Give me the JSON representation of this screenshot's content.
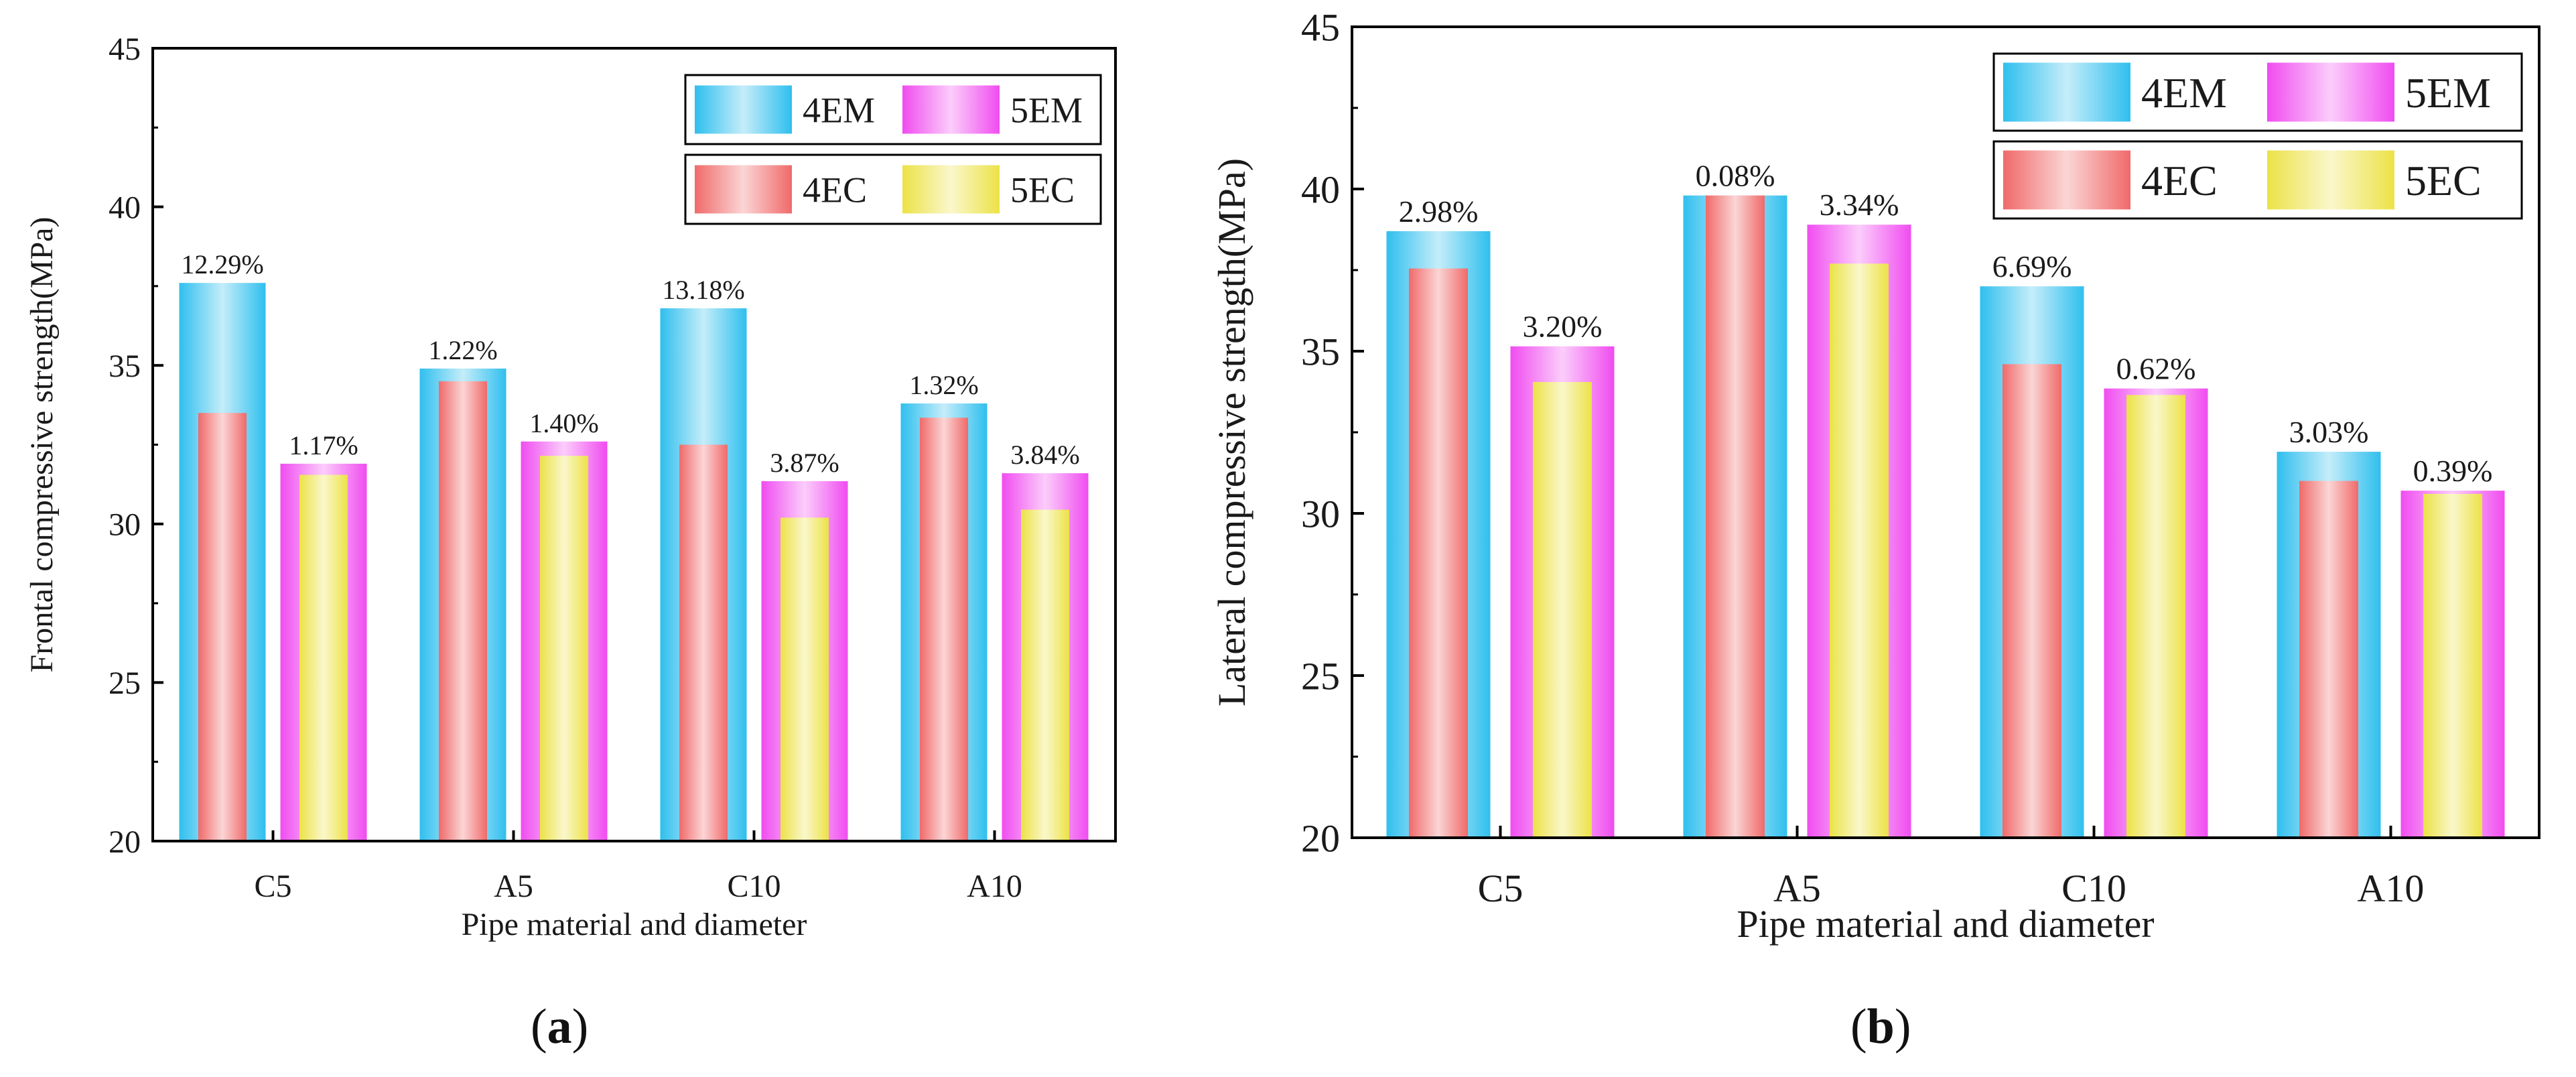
{
  "charts": [
    {
      "id": "a",
      "caption_label": "a",
      "ylabel": "Frontal compressive strength(MPa)",
      "xlabel": "Pipe material and diameter"
    },
    {
      "id": "b",
      "caption_label": "b",
      "ylabel": "Lateral compressive strength(MPa)",
      "xlabel": "Pipe material and diameter"
    }
  ],
  "colors": {
    "4EM": "#2fbfee",
    "5EM": "#f04cf0",
    "4EC": "#f06a6a",
    "5EC": "#ece247",
    "axis": "#000000"
  },
  "chart_data": [
    {
      "type": "bar",
      "title": "",
      "xlabel": "Pipe material and diameter",
      "ylabel": "Frontal compressive strength(MPa)",
      "categories": [
        "C5",
        "A5",
        "C10",
        "A10"
      ],
      "ylim": [
        20,
        45
      ],
      "yticks": [
        20,
        25,
        30,
        35,
        40,
        45
      ],
      "legend_position": "top-right",
      "series": [
        {
          "name": "4EM",
          "values": [
            37.6,
            34.9,
            36.8,
            33.8
          ]
        },
        {
          "name": "4EC",
          "values": [
            33.5,
            34.5,
            32.5,
            33.35
          ]
        },
        {
          "name": "5EM",
          "values": [
            31.9,
            32.6,
            31.35,
            31.6
          ]
        },
        {
          "name": "5EC",
          "values": [
            31.55,
            32.15,
            30.2,
            30.45
          ]
        }
      ],
      "annotations": [
        {
          "category": "C5",
          "series": "4EM",
          "text": "12.29%"
        },
        {
          "category": "C5",
          "series": "5EM",
          "text": "1.17%"
        },
        {
          "category": "A5",
          "series": "4EM",
          "text": "1.22%"
        },
        {
          "category": "A5",
          "series": "5EM",
          "text": "1.40%"
        },
        {
          "category": "C10",
          "series": "4EM",
          "text": "13.18%"
        },
        {
          "category": "C10",
          "series": "5EM",
          "text": "3.87%"
        },
        {
          "category": "A10",
          "series": "4EM",
          "text": "1.32%"
        },
        {
          "category": "A10",
          "series": "5EM",
          "text": "3.84%"
        }
      ]
    },
    {
      "type": "bar",
      "title": "",
      "xlabel": "Pipe material and diameter",
      "ylabel": "Lateral compressive strength(MPa)",
      "categories": [
        "C5",
        "A5",
        "C10",
        "A10"
      ],
      "ylim": [
        20,
        45
      ],
      "yticks": [
        20,
        25,
        30,
        35,
        40,
        45
      ],
      "legend_position": "top-right",
      "series": [
        {
          "name": "4EM",
          "values": [
            38.7,
            39.8,
            37.0,
            31.9
          ]
        },
        {
          "name": "4EC",
          "values": [
            37.55,
            39.8,
            34.6,
            31.0
          ]
        },
        {
          "name": "5EM",
          "values": [
            35.15,
            38.9,
            33.85,
            30.7
          ]
        },
        {
          "name": "5EC",
          "values": [
            34.05,
            37.7,
            33.65,
            30.6
          ]
        }
      ],
      "annotations": [
        {
          "category": "C5",
          "series": "4EM",
          "text": "2.98%"
        },
        {
          "category": "C5",
          "series": "5EM",
          "text": "3.20%"
        },
        {
          "category": "A5",
          "series": "4EM",
          "text": "0.08%"
        },
        {
          "category": "A5",
          "series": "5EM",
          "text": "3.34%"
        },
        {
          "category": "C10",
          "series": "4EM",
          "text": "6.69%"
        },
        {
          "category": "C10",
          "series": "5EM",
          "text": "0.62%"
        },
        {
          "category": "A10",
          "series": "4EM",
          "text": "3.03%"
        },
        {
          "category": "A10",
          "series": "5EM",
          "text": "0.39%"
        }
      ]
    }
  ]
}
